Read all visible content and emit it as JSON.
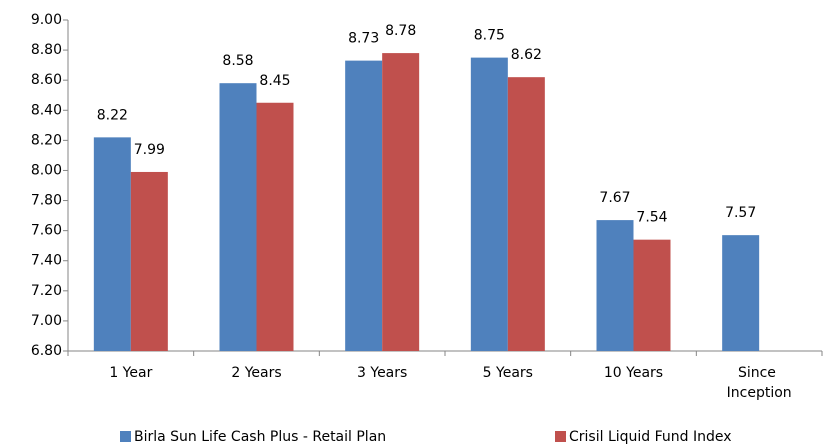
{
  "chart_data": {
    "type": "bar",
    "categories": [
      "1 Year",
      "2 Years",
      "3 Years",
      "5 Years",
      "10 Years",
      "Since Inception"
    ],
    "series": [
      {
        "name": "Birla Sun Life Cash Plus - Retail Plan",
        "color": "#4f81bd",
        "values": [
          8.22,
          8.58,
          8.73,
          8.75,
          7.67,
          7.57
        ]
      },
      {
        "name": "Crisil Liquid Fund Index",
        "color": "#c0504d",
        "values": [
          7.99,
          8.45,
          8.78,
          8.62,
          7.54,
          null
        ]
      }
    ],
    "ylim": [
      6.8,
      9.0
    ],
    "yticks": [
      {
        "value": 6.8,
        "label": "6.80"
      },
      {
        "value": 7.0,
        "label": "7.00"
      },
      {
        "value": 7.2,
        "label": "7.20"
      },
      {
        "value": 7.4,
        "label": "7.40"
      },
      {
        "value": 7.6,
        "label": "7.60"
      },
      {
        "value": 7.8,
        "label": "7.80"
      },
      {
        "value": 8.0,
        "label": "8.00"
      },
      {
        "value": 8.2,
        "label": "8.20"
      },
      {
        "value": 8.4,
        "label": "8.40"
      },
      {
        "value": 8.6,
        "label": "8.60"
      },
      {
        "value": 8.8,
        "label": "8.80"
      },
      {
        "value": 9.0,
        "label": "9.00"
      }
    ],
    "legend": "bottom"
  }
}
